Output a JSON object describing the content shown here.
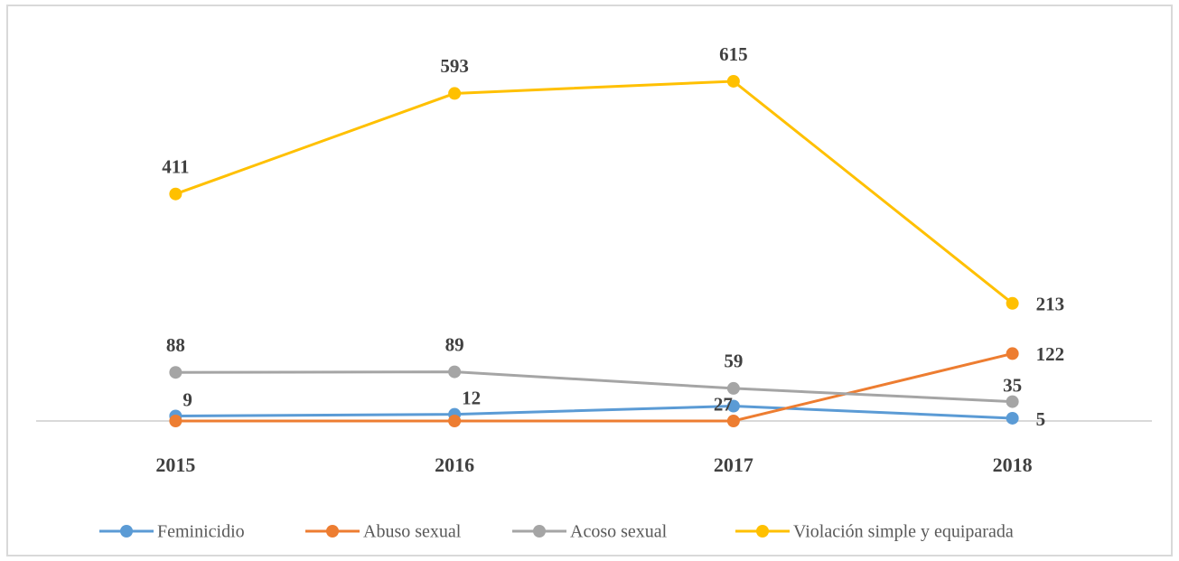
{
  "chart_data": {
    "type": "line",
    "categories": [
      "2015",
      "2016",
      "2017",
      "2018"
    ],
    "ylim": [
      0,
      700
    ],
    "series": [
      {
        "name": "Feminicidio",
        "color": "#5b9bd5",
        "values": [
          9,
          12,
          27,
          5
        ]
      },
      {
        "name": "Abuso sexual",
        "color": "#ed7d31",
        "values": [
          0,
          0,
          0,
          122
        ],
        "value_labels": [
          null,
          null,
          null,
          "122"
        ]
      },
      {
        "name": "Acoso sexual",
        "color": "#a5a5a5",
        "values": [
          88,
          89,
          59,
          35
        ]
      },
      {
        "name": "Violación simple y equiparada",
        "color": "#ffc000",
        "values": [
          411,
          593,
          615,
          213
        ]
      }
    ]
  }
}
